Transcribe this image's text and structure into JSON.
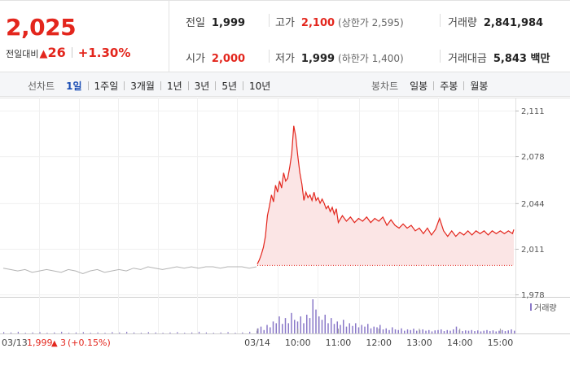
{
  "quote": {
    "price": "2,025",
    "change_label": "전일대비",
    "change_arrow": "▲",
    "change_value": "26",
    "change_pct": "+1.30%"
  },
  "stats": {
    "prev_close": {
      "label": "전일",
      "value": "1,999"
    },
    "high": {
      "label": "고가",
      "value": "2,100",
      "sub": "(상한가 2,595)"
    },
    "volume": {
      "label": "거래량",
      "value": "2,841,984"
    },
    "open": {
      "label": "시가",
      "value": "2,000"
    },
    "low": {
      "label": "저가",
      "value": "1,999",
      "sub": "(하한가 1,400)"
    },
    "amount": {
      "label": "거래대금",
      "value": "5,843 백만"
    }
  },
  "toolbar": {
    "line_chart_label": "선차트",
    "line_periods": [
      "1일",
      "1주일",
      "3개월",
      "1년",
      "3년",
      "5년",
      "10년"
    ],
    "active_period": "1일",
    "candle_chart_label": "봉차트",
    "candle_periods": [
      "일봉",
      "주봉",
      "월봉"
    ]
  },
  "chart_data": {
    "type": "line",
    "y_ticks": [
      "2,111",
      "2,078",
      "2,044",
      "2,011",
      "1,978"
    ],
    "ylim": [
      1978,
      2111
    ],
    "x_ticks": [
      "03/14",
      "10:00",
      "11:00",
      "12:00",
      "13:00",
      "14:00",
      "15:00"
    ],
    "prev_day_label": "03/13",
    "prev_day_close": "1,999",
    "prev_day_change_arrow": "▲",
    "prev_day_change": "3",
    "prev_day_change_pct": "(+0.15%)",
    "volume_legend": "거래량",
    "colors": {
      "today": "#e3261d",
      "prev_day": "#b4b4b4",
      "fill": "#fbe5e5",
      "volume": "#8a78c8",
      "baseline": "#e3261d"
    },
    "baseline_value": 1999,
    "prev_day_series": [
      1997,
      1996,
      1995,
      1996,
      1994,
      1995,
      1996,
      1995,
      1994,
      1996,
      1995,
      1993,
      1995,
      1996,
      1994,
      1995,
      1996,
      1995,
      1997,
      1996,
      1998,
      1997,
      1996,
      1997,
      1998,
      1997,
      1998,
      1997,
      1998,
      1998,
      1997,
      1998,
      1998,
      1998,
      1997,
      1998
    ],
    "today_series": [
      {
        "t": "09:00",
        "v": 2000
      },
      {
        "t": "09:03",
        "v": 2003
      },
      {
        "t": "09:06",
        "v": 2007
      },
      {
        "t": "09:09",
        "v": 2012
      },
      {
        "t": "09:12",
        "v": 2020
      },
      {
        "t": "09:15",
        "v": 2035
      },
      {
        "t": "09:18",
        "v": 2042
      },
      {
        "t": "09:21",
        "v": 2050
      },
      {
        "t": "09:24",
        "v": 2045
      },
      {
        "t": "09:27",
        "v": 2057
      },
      {
        "t": "09:30",
        "v": 2052
      },
      {
        "t": "09:33",
        "v": 2060
      },
      {
        "t": "09:36",
        "v": 2055
      },
      {
        "t": "09:39",
        "v": 2066
      },
      {
        "t": "09:42",
        "v": 2060
      },
      {
        "t": "09:45",
        "v": 2062
      },
      {
        "t": "09:48",
        "v": 2070
      },
      {
        "t": "09:51",
        "v": 2080
      },
      {
        "t": "09:54",
        "v": 2100
      },
      {
        "t": "09:57",
        "v": 2092
      },
      {
        "t": "10:00",
        "v": 2078
      },
      {
        "t": "10:03",
        "v": 2066
      },
      {
        "t": "10:06",
        "v": 2058
      },
      {
        "t": "10:09",
        "v": 2046
      },
      {
        "t": "10:12",
        "v": 2052
      },
      {
        "t": "10:15",
        "v": 2048
      },
      {
        "t": "10:18",
        "v": 2050
      },
      {
        "t": "10:21",
        "v": 2046
      },
      {
        "t": "10:24",
        "v": 2052
      },
      {
        "t": "10:27",
        "v": 2046
      },
      {
        "t": "10:30",
        "v": 2048
      },
      {
        "t": "10:33",
        "v": 2044
      },
      {
        "t": "10:36",
        "v": 2047
      },
      {
        "t": "10:39",
        "v": 2044
      },
      {
        "t": "10:42",
        "v": 2040
      },
      {
        "t": "10:45",
        "v": 2042
      },
      {
        "t": "10:48",
        "v": 2038
      },
      {
        "t": "10:51",
        "v": 2041
      },
      {
        "t": "10:54",
        "v": 2036
      },
      {
        "t": "10:57",
        "v": 2040
      },
      {
        "t": "11:00",
        "v": 2030
      },
      {
        "t": "11:06",
        "v": 2035
      },
      {
        "t": "11:12",
        "v": 2031
      },
      {
        "t": "11:18",
        "v": 2034
      },
      {
        "t": "11:24",
        "v": 2030
      },
      {
        "t": "11:30",
        "v": 2033
      },
      {
        "t": "11:36",
        "v": 2031
      },
      {
        "t": "11:42",
        "v": 2034
      },
      {
        "t": "11:48",
        "v": 2030
      },
      {
        "t": "11:54",
        "v": 2033
      },
      {
        "t": "12:00",
        "v": 2031
      },
      {
        "t": "12:06",
        "v": 2034
      },
      {
        "t": "12:12",
        "v": 2028
      },
      {
        "t": "12:18",
        "v": 2032
      },
      {
        "t": "12:24",
        "v": 2028
      },
      {
        "t": "12:30",
        "v": 2026
      },
      {
        "t": "12:36",
        "v": 2029
      },
      {
        "t": "12:42",
        "v": 2026
      },
      {
        "t": "12:48",
        "v": 2028
      },
      {
        "t": "12:54",
        "v": 2024
      },
      {
        "t": "13:00",
        "v": 2026
      },
      {
        "t": "13:06",
        "v": 2022
      },
      {
        "t": "13:12",
        "v": 2026
      },
      {
        "t": "13:18",
        "v": 2021
      },
      {
        "t": "13:24",
        "v": 2025
      },
      {
        "t": "13:30",
        "v": 2033
      },
      {
        "t": "13:36",
        "v": 2024
      },
      {
        "t": "13:42",
        "v": 2020
      },
      {
        "t": "13:48",
        "v": 2024
      },
      {
        "t": "13:54",
        "v": 2020
      },
      {
        "t": "14:00",
        "v": 2023
      },
      {
        "t": "14:06",
        "v": 2021
      },
      {
        "t": "14:12",
        "v": 2024
      },
      {
        "t": "14:18",
        "v": 2021
      },
      {
        "t": "14:24",
        "v": 2024
      },
      {
        "t": "14:30",
        "v": 2022
      },
      {
        "t": "14:36",
        "v": 2024
      },
      {
        "t": "14:42",
        "v": 2021
      },
      {
        "t": "14:48",
        "v": 2024
      },
      {
        "t": "14:54",
        "v": 2022
      },
      {
        "t": "15:00",
        "v": 2024
      },
      {
        "t": "15:06",
        "v": 2022
      },
      {
        "t": "15:12",
        "v": 2024
      },
      {
        "t": "15:18",
        "v": 2022
      },
      {
        "t": "15:20",
        "v": 2025
      }
    ],
    "prev_day_volume": [
      0.04,
      0.03,
      0.05,
      0.02,
      0.03,
      0.04,
      0.02,
      0.03,
      0.05,
      0.02,
      0.03,
      0.04,
      0.02,
      0.03,
      0.02,
      0.04,
      0.03,
      0.05,
      0.03,
      0.02,
      0.04,
      0.03,
      0.02,
      0.03,
      0.04,
      0.02,
      0.03,
      0.05,
      0.03,
      0.02,
      0.03,
      0.04,
      0.02,
      0.03,
      0.05,
      0.08
    ],
    "today_volume": [
      0.15,
      0.2,
      0.1,
      0.25,
      0.18,
      0.35,
      0.3,
      0.5,
      0.28,
      0.45,
      0.3,
      0.6,
      0.4,
      0.35,
      0.5,
      0.3,
      0.55,
      0.45,
      1.0,
      0.7,
      0.5,
      0.4,
      0.55,
      0.3,
      0.45,
      0.28,
      0.35,
      0.25,
      0.4,
      0.2,
      0.3,
      0.22,
      0.3,
      0.18,
      0.25,
      0.2,
      0.28,
      0.15,
      0.2,
      0.18,
      0.25,
      0.12,
      0.15,
      0.1,
      0.18,
      0.12,
      0.1,
      0.15,
      0.08,
      0.12,
      0.1,
      0.14,
      0.08,
      0.1,
      0.12,
      0.08,
      0.1,
      0.06,
      0.09,
      0.1,
      0.12,
      0.07,
      0.1,
      0.08,
      0.12,
      0.2,
      0.1,
      0.07,
      0.09,
      0.08,
      0.1,
      0.07,
      0.09,
      0.06,
      0.08,
      0.1,
      0.07,
      0.09,
      0.06,
      0.08,
      0.1,
      0.07,
      0.09,
      0.12,
      0.08
    ]
  }
}
